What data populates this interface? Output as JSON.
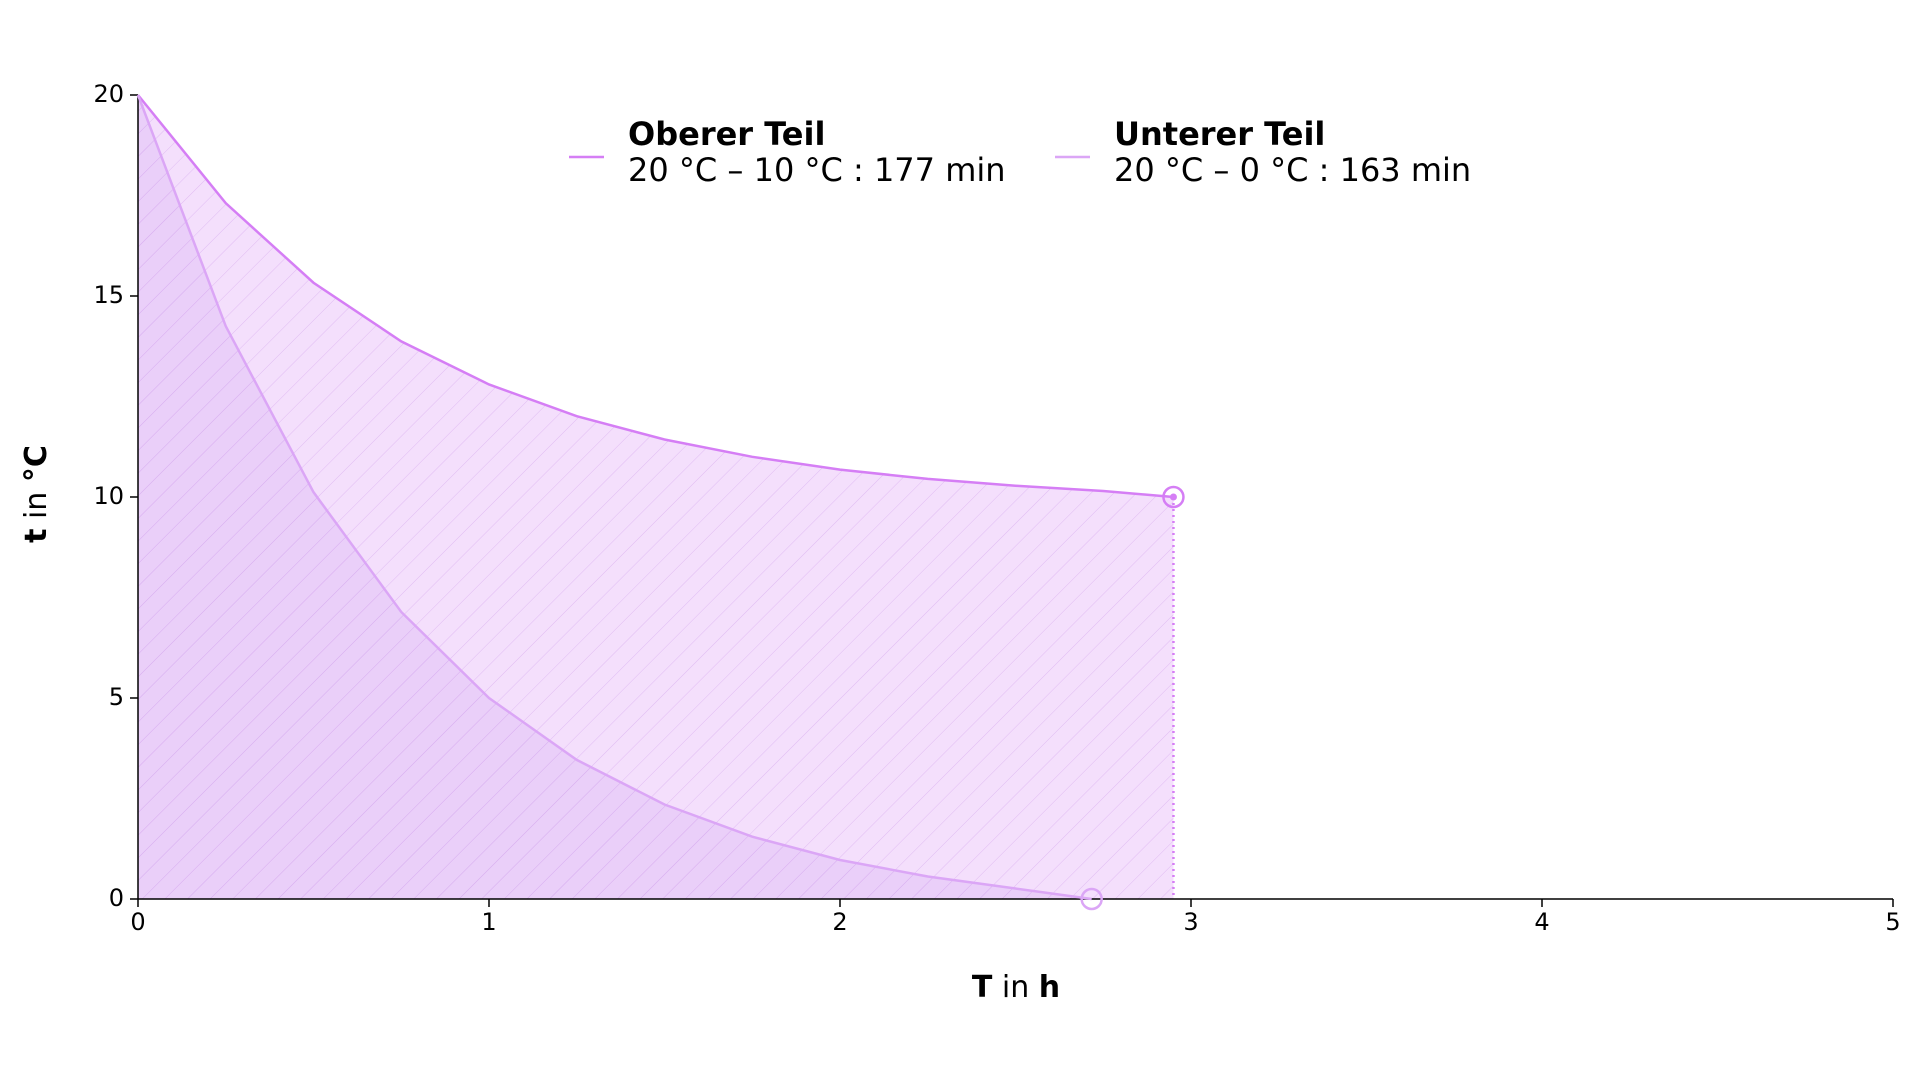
{
  "chart_data": {
    "type": "line",
    "xlabel": [
      "T",
      "in",
      "h"
    ],
    "ylabel": [
      "t",
      "in",
      "°C"
    ],
    "series": [
      {
        "name": "Oberer Teil",
        "description": "20 °C – 10 °C : 177 min",
        "color": "#d57ef5",
        "fill": "#f2d9fb",
        "x": [
          0,
          0.25,
          0.5,
          0.75,
          1,
          1.25,
          1.5,
          1.75,
          2,
          2.25,
          2.5,
          2.75,
          2.95
        ],
        "values": [
          20,
          17.31,
          15.33,
          13.87,
          12.8,
          12.01,
          11.43,
          11.0,
          10.68,
          10.45,
          10.28,
          10.15,
          10
        ]
      },
      {
        "name": "Unterer Teil",
        "description": "20 °C – 0 °C : 163 min",
        "color": "#dba6f6",
        "fill": "#e6c8f8",
        "x": [
          0,
          0.25,
          0.5,
          0.75,
          1,
          1.25,
          1.5,
          1.75,
          2,
          2.25,
          2.5,
          2.717
        ],
        "values": [
          20,
          14.25,
          10.12,
          7.14,
          5.0,
          3.46,
          2.35,
          1.55,
          0.97,
          0.56,
          0.26,
          0
        ]
      }
    ],
    "xlim": [
      0,
      5
    ],
    "ylim": [
      0,
      20
    ],
    "xticks": [
      0,
      1,
      2,
      3,
      4,
      5
    ],
    "yticks": [
      0,
      5,
      10,
      15,
      20
    ]
  }
}
